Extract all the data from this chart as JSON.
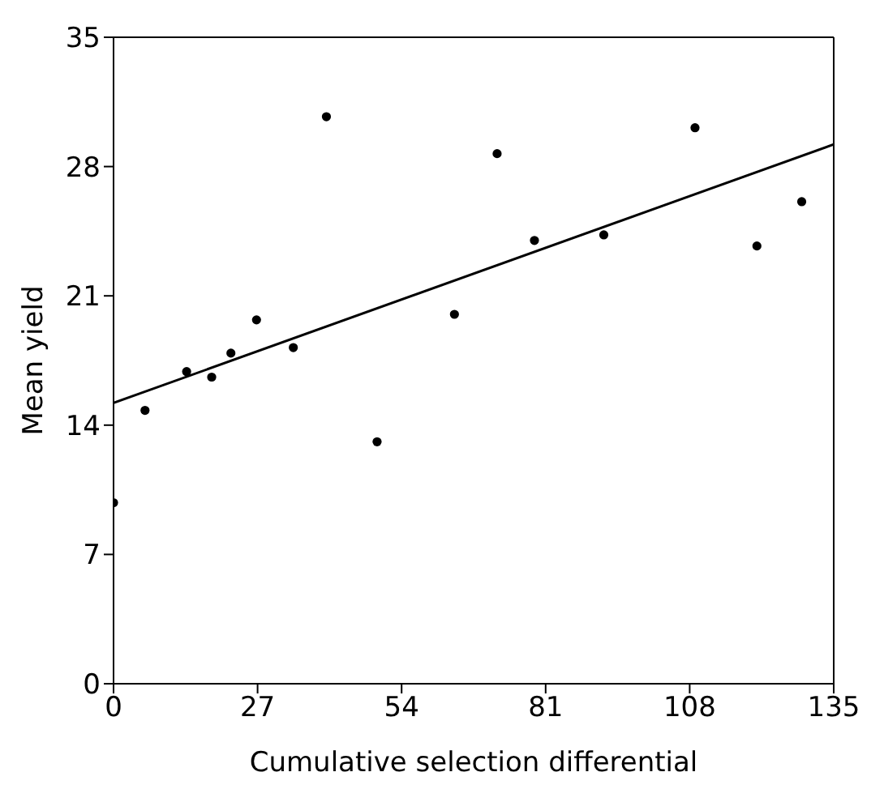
{
  "chart_data": {
    "type": "scatter",
    "xlabel": "Cumulative selection differential",
    "ylabel": "Mean yield",
    "xlim": [
      0,
      135
    ],
    "xticks": [
      0,
      27,
      54,
      81,
      108,
      135
    ],
    "ylim": [
      0,
      35
    ],
    "yticks": [
      0,
      7,
      14,
      21,
      28,
      35
    ],
    "series": [
      {
        "type": "scatter",
        "color": "#000000",
        "marker": "circle",
        "x": [
          0,
          5.9,
          13.7,
          18.4,
          22.0,
          26.8,
          33.7,
          39.9,
          49.4,
          63.9,
          71.9,
          78.9,
          91.9,
          109.0,
          120.6,
          129.0
        ],
        "values": [
          9.8,
          14.8,
          16.9,
          16.6,
          17.9,
          19.7,
          18.2,
          30.7,
          13.1,
          20.0,
          28.7,
          24.0,
          24.3,
          30.1,
          23.7,
          26.1
        ]
      },
      {
        "type": "line",
        "color": "#000000",
        "marker": "none",
        "line_style": "solid",
        "x": [
          0,
          135
        ],
        "values": [
          15.2,
          29.2
        ]
      }
    ]
  }
}
